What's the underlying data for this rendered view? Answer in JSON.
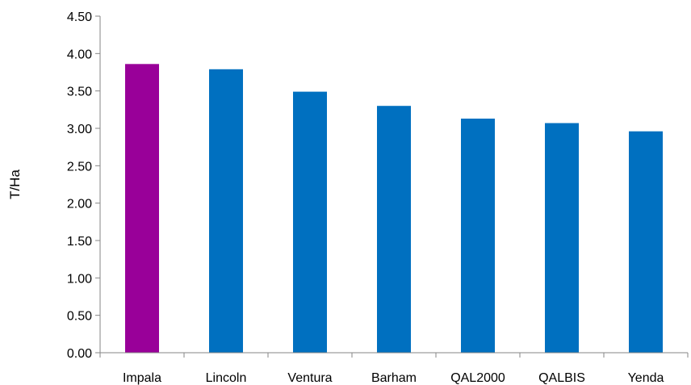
{
  "chart_data": {
    "type": "bar",
    "title": "",
    "xlabel": "",
    "ylabel": "T/Ha",
    "categories": [
      "Impala",
      "Lincoln",
      "Ventura",
      "Barham",
      "QAL2000",
      "QALBIS",
      "Yenda"
    ],
    "values": [
      3.86,
      3.79,
      3.49,
      3.3,
      3.13,
      3.07,
      2.96
    ],
    "bar_colors": [
      "#990099",
      "#0070C0",
      "#0070C0",
      "#0070C0",
      "#0070C0",
      "#0070C0",
      "#0070C0"
    ],
    "ylim": [
      0,
      4.5
    ],
    "yticks": [
      "0.00",
      "0.50",
      "1.00",
      "1.50",
      "2.00",
      "2.50",
      "3.00",
      "3.50",
      "4.00",
      "4.50"
    ],
    "grid": false,
    "legend": "none"
  }
}
